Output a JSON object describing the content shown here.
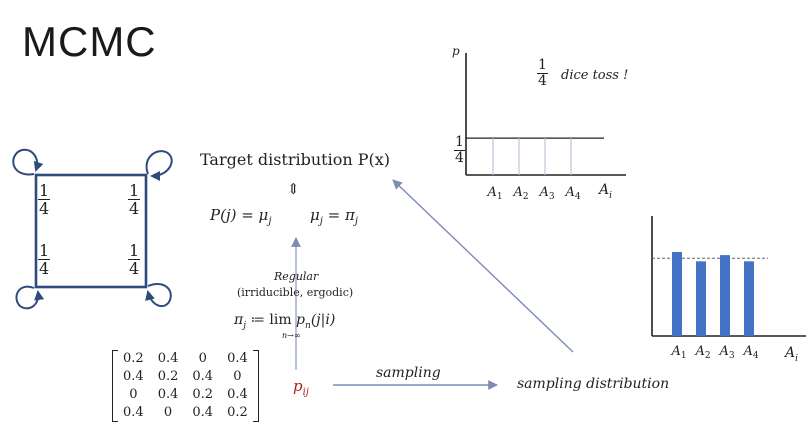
{
  "title": "MCMC",
  "markov_diagram": {
    "states": [
      {
        "num": "1",
        "den": "4"
      },
      {
        "num": "1",
        "den": "4"
      },
      {
        "num": "1",
        "den": "4"
      },
      {
        "num": "1",
        "den": "4"
      }
    ]
  },
  "target": {
    "label": "Target distribution P(x)",
    "equiv_symbol": "⇕",
    "eq_left": "P(j) = μ",
    "eq_left_sub": "j",
    "eq_right": "μ",
    "eq_right_sub": "j",
    "eq_right_mid": " = π",
    "eq_right_sub2": "j"
  },
  "regular": {
    "label": "Regular",
    "conditions": "(irriducible, ergodic)"
  },
  "limit": {
    "lhs": "π",
    "lhs_sub": "j",
    "op": " ≔ ",
    "lim": "lim",
    "lim_sub": "n→∞",
    "rhs": " p",
    "rhs_sub": "n",
    "rhs_arg": "(j|i)"
  },
  "matrix": {
    "rows": [
      [
        "0.2",
        "0.4",
        "0",
        "0.4"
      ],
      [
        "0.4",
        "0.2",
        "0.4",
        "0"
      ],
      [
        "0",
        "0.4",
        "0.2",
        "0.4"
      ],
      [
        "0.4",
        "0",
        "0.4",
        "0.2"
      ]
    ]
  },
  "pij": {
    "base": "p",
    "sub": "ij"
  },
  "sampling": {
    "arrow_label": "sampling",
    "distribution_label": "sampling distribution"
  },
  "top_chart": {
    "y_axis_label": "p",
    "note_frac_num": "1",
    "note_frac_den": "4",
    "note_text": "dice toss !",
    "y_tick_num": "1",
    "y_tick_den": "4",
    "x_axis_label": "A",
    "x_axis_sub": "i"
  },
  "chart_data": [
    {
      "type": "bar",
      "categories": [
        "A1",
        "A2",
        "A3",
        "A4"
      ],
      "values": [
        0.25,
        0.25,
        0.25,
        0.25
      ],
      "ylabel": "p",
      "xlabel": "Ai",
      "style": "thin-outline",
      "color": "#bcc6d8"
    },
    {
      "type": "bar",
      "categories": [
        "A1",
        "A2",
        "A3",
        "A4"
      ],
      "values": [
        0.27,
        0.24,
        0.26,
        0.24
      ],
      "reference": 0.25,
      "xlabel": "Ai",
      "color": "#4472c4"
    }
  ],
  "colors": {
    "diagram_blue": "#2f4a7c",
    "arrow": "#7d8cb3",
    "bar_blue": "#4472c4",
    "pij_red": "#b02020"
  }
}
